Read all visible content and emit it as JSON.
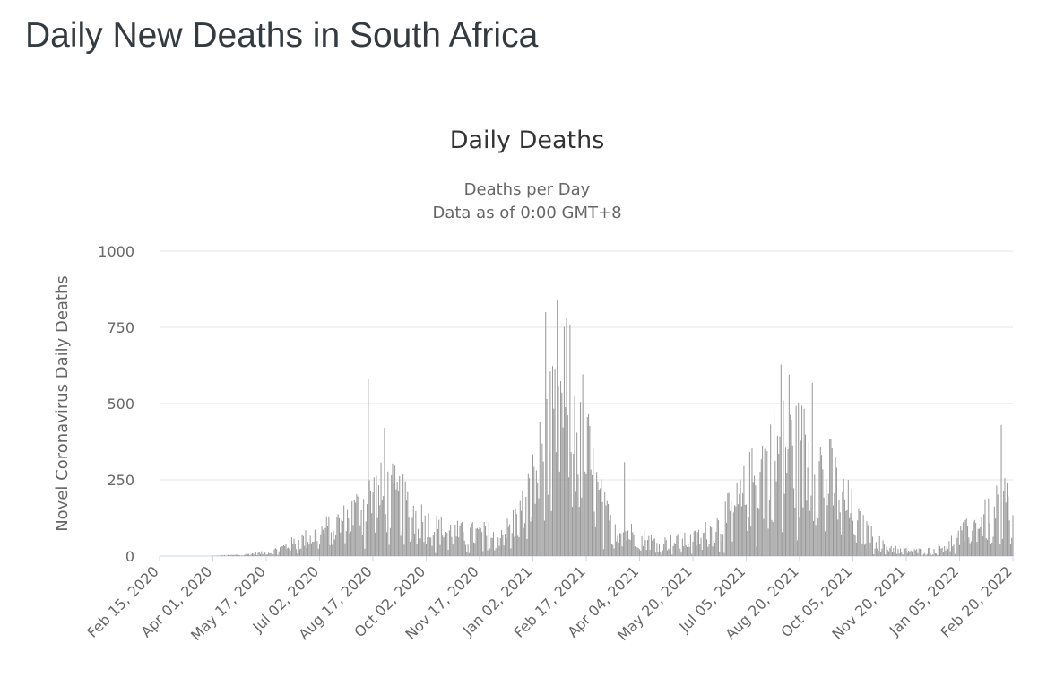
{
  "page": {
    "title": "Daily New Deaths in South Africa"
  },
  "chart_data": {
    "type": "bar",
    "title": "Daily Deaths",
    "subtitle": [
      "Deaths per Day",
      "Data as of 0:00 GMT+8"
    ],
    "xlabel": "",
    "ylabel": "Novel Coronavirus Daily Deaths",
    "ylim": [
      0,
      1000
    ],
    "yticks": [
      0,
      250,
      500,
      750,
      1000
    ],
    "bar_color": "#999999",
    "grid": true,
    "start_date": "2020-02-15",
    "end_date": "2022-02-20",
    "x_tick_labels": [
      "Feb 15, 2020",
      "Apr 01, 2020",
      "May 17, 2020",
      "Jul 02, 2020",
      "Aug 17, 2020",
      "Oct 02, 2020",
      "Nov 17, 2020",
      "Jan 02, 2021",
      "Feb 17, 2021",
      "Apr 04, 2021",
      "May 20, 2021",
      "Jul 05, 2021",
      "Aug 20, 2021",
      "Oct 05, 2021",
      "Nov 20, 2021",
      "Jan 05, 2022",
      "Feb 20, 2022"
    ],
    "x_tick_day_index": [
      0,
      46,
      92,
      138,
      184,
      230,
      276,
      322,
      368,
      414,
      460,
      506,
      552,
      598,
      644,
      690,
      736
    ],
    "trend_keypoints": [
      {
        "day": 0,
        "value": 0
      },
      {
        "day": 40,
        "value": 0
      },
      {
        "day": 70,
        "value": 4
      },
      {
        "day": 95,
        "value": 12
      },
      {
        "day": 130,
        "value": 60
      },
      {
        "day": 160,
        "value": 110
      },
      {
        "day": 185,
        "value": 190
      },
      {
        "day": 200,
        "value": 190
      },
      {
        "day": 215,
        "value": 150
      },
      {
        "day": 235,
        "value": 90
      },
      {
        "day": 260,
        "value": 70
      },
      {
        "day": 285,
        "value": 70
      },
      {
        "day": 300,
        "value": 80
      },
      {
        "day": 315,
        "value": 150
      },
      {
        "day": 330,
        "value": 300
      },
      {
        "day": 345,
        "value": 450
      },
      {
        "day": 355,
        "value": 500
      },
      {
        "day": 365,
        "value": 380
      },
      {
        "day": 375,
        "value": 220
      },
      {
        "day": 385,
        "value": 120
      },
      {
        "day": 400,
        "value": 80
      },
      {
        "day": 430,
        "value": 40
      },
      {
        "day": 460,
        "value": 50
      },
      {
        "day": 480,
        "value": 90
      },
      {
        "day": 500,
        "value": 160
      },
      {
        "day": 520,
        "value": 280
      },
      {
        "day": 535,
        "value": 330
      },
      {
        "day": 555,
        "value": 320
      },
      {
        "day": 575,
        "value": 260
      },
      {
        "day": 590,
        "value": 180
      },
      {
        "day": 605,
        "value": 90
      },
      {
        "day": 625,
        "value": 30
      },
      {
        "day": 650,
        "value": 15
      },
      {
        "day": 670,
        "value": 20
      },
      {
        "day": 690,
        "value": 60
      },
      {
        "day": 705,
        "value": 100
      },
      {
        "day": 720,
        "value": 130
      },
      {
        "day": 730,
        "value": 180
      },
      {
        "day": 736,
        "value": 100
      }
    ],
    "notable_spikes": [
      {
        "day": 180,
        "value": 580
      },
      {
        "day": 194,
        "value": 420
      },
      {
        "day": 333,
        "value": 800
      },
      {
        "day": 343,
        "value": 838
      },
      {
        "day": 349,
        "value": 752
      },
      {
        "day": 401,
        "value": 308
      },
      {
        "day": 536,
        "value": 628
      },
      {
        "day": 543,
        "value": 595
      },
      {
        "day": 563,
        "value": 568
      },
      {
        "day": 726,
        "value": 430
      }
    ]
  }
}
